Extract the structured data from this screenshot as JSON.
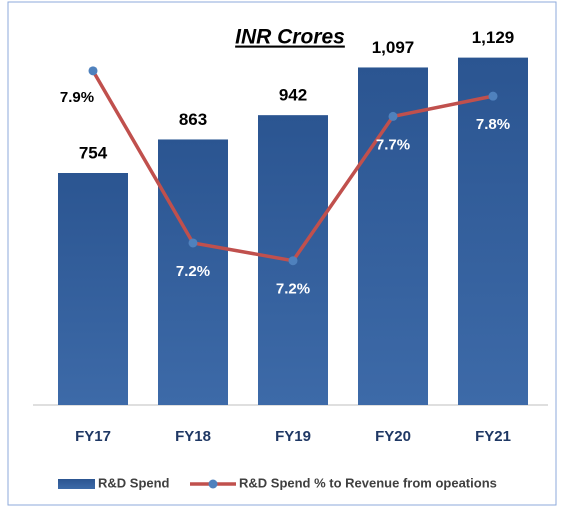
{
  "chart_data": {
    "type": "bar",
    "title": "INR Crores",
    "categories": [
      "FY17",
      "FY18",
      "FY19",
      "FY20",
      "FY21"
    ],
    "series": [
      {
        "name": "R&D Spend",
        "type": "bar",
        "color": "#2f5a93",
        "values": [
          754,
          863,
          942,
          1097,
          1129
        ],
        "value_labels": [
          "754",
          "863",
          "942",
          "1,097",
          "1,129"
        ]
      },
      {
        "name": "R&D Spend % to Revenue from opeations",
        "type": "line",
        "axis": "y2",
        "color": "#c0504d",
        "marker_color": "#4f81bd",
        "values": [
          7.9,
          7.22,
          7.15,
          7.72,
          7.8
        ],
        "value_labels": [
          "7.9%",
          "7.2%",
          "7.2%",
          "7.7%",
          "7.8%"
        ]
      }
    ],
    "ylim": [
      0,
      1300
    ],
    "y2lim": [
      6.58,
      8.16
    ],
    "legend": "bottom"
  }
}
